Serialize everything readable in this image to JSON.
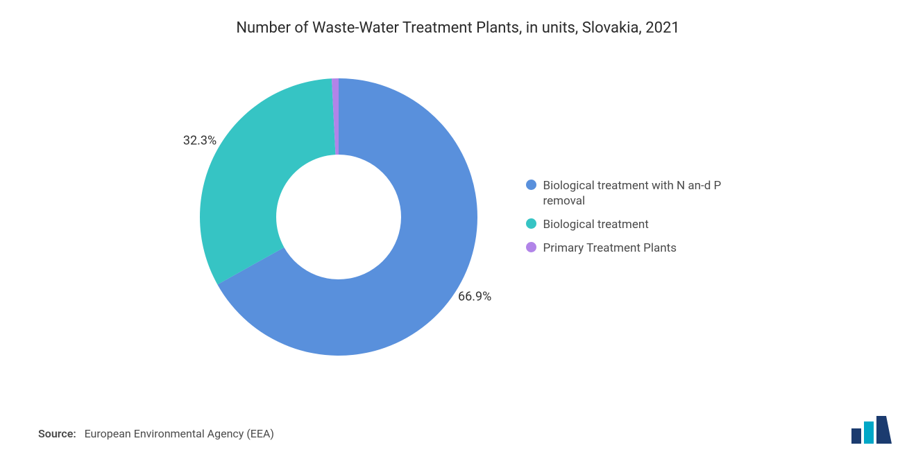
{
  "chart": {
    "type": "donut",
    "title": "Number of Waste-Water Treatment Plants, in units, Slovakia, 2021",
    "title_fontsize": 22,
    "title_color": "#2a2a2a",
    "background_color": "#ffffff",
    "inner_radius_ratio": 0.45,
    "outer_radius": 200,
    "start_angle_deg": -90,
    "slices": [
      {
        "label": "Biological treatment with N an-d P removal",
        "value": 66.9,
        "display": "66.9%",
        "color": "#5990dc"
      },
      {
        "label": "Biological treatment",
        "value": 32.3,
        "display": "32.3%",
        "color": "#36c4c4"
      },
      {
        "label": "Primary Treatment Plants",
        "value": 0.8,
        "display": "",
        "color": "#b184e8"
      }
    ],
    "label_fontsize": 18,
    "label_color": "#333333",
    "legend": {
      "position": "right",
      "fontsize": 17,
      "color": "#4a4a4a",
      "swatch_shape": "circle",
      "swatch_size": 15
    }
  },
  "source": {
    "prefix": "Source:",
    "text": "European Environmental Agency (EEA)"
  },
  "logo": {
    "bars": [
      "#1b3b6f",
      "#00a7c7",
      "#1b3b6f"
    ],
    "bg": "#ffffff"
  }
}
